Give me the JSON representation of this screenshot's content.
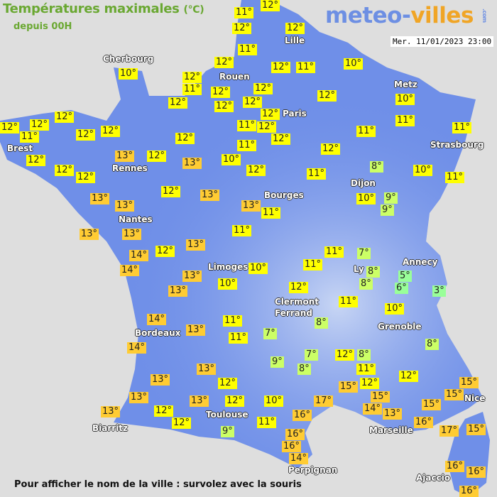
{
  "header": {
    "title": "Températures maximales",
    "unit": "(°C)",
    "subtitle": "depuis 00H",
    "logo": {
      "part1": "meteo-",
      "part2": "villes",
      "suffix": ".com"
    },
    "datetime": "Mer. 11/01/2023 23:00"
  },
  "footer": "Pour afficher le nom de la ville : survolez avec la souris",
  "colors": {
    "land": "#6f8fe8",
    "sea": "#dedede",
    "cold": "#99ff99",
    "cool": "#ccff66",
    "mild": "#ffff00",
    "warm": "#ffcc33"
  },
  "cities": [
    "Lille",
    "Cherbourg",
    "Rouen",
    "Metz",
    "Paris",
    "Brest",
    "Strasbourg",
    "Rennes",
    "Dijon",
    "Bourges",
    "Nantes",
    "Limoges",
    "Annecy",
    "Ly",
    "Clermont",
    "Ferrand",
    "Grenoble",
    "Bordeaux",
    "Toulouse",
    "Biarritz",
    "Marseille",
    "Nice",
    "Perpignan",
    "Ajaccio"
  ],
  "temperatures": [
    12,
    11,
    12,
    12,
    11,
    10,
    12,
    12,
    11,
    10,
    12,
    11,
    12,
    12,
    12,
    12,
    12,
    12,
    10,
    12,
    11,
    12,
    11,
    12,
    12,
    12,
    11,
    12,
    12,
    12,
    12,
    11,
    11,
    11,
    13,
    12,
    13,
    10,
    12,
    12,
    12,
    12,
    12,
    11,
    8,
    10,
    11,
    12,
    13,
    13,
    13,
    13,
    11,
    10,
    9,
    9,
    13,
    13,
    11,
    13,
    14,
    12,
    14,
    13,
    13,
    10,
    10,
    11,
    11,
    7,
    8,
    8,
    5,
    6,
    3,
    12,
    11,
    10,
    8,
    14,
    13,
    11,
    11,
    7,
    14,
    8,
    9,
    7,
    8,
    12,
    8,
    11,
    13,
    12,
    13,
    12,
    15,
    12,
    15,
    13,
    15,
    13,
    12,
    10,
    17,
    15,
    14,
    13,
    15,
    13,
    12,
    12,
    16,
    11,
    16,
    17,
    15,
    9,
    16,
    16,
    14,
    16,
    16,
    16
  ]
}
